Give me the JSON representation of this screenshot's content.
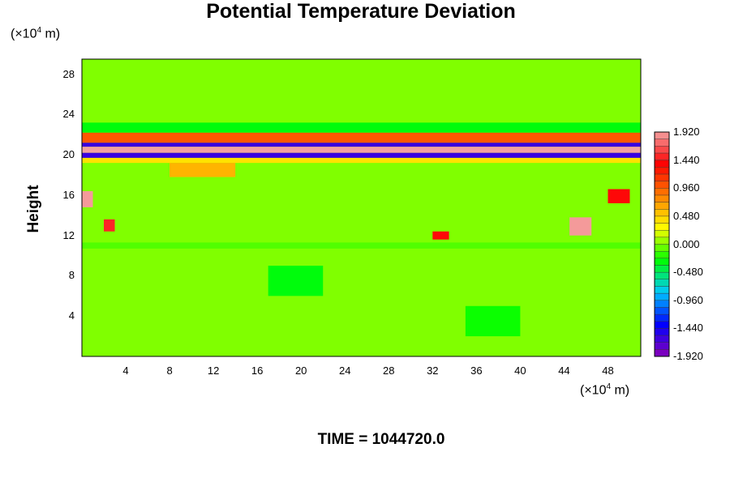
{
  "chart_data": {
    "type": "heatmap",
    "title": "Potential Temperature Deviation",
    "ylabel": "Height",
    "xunit": {
      "prefix": "(×10",
      "exp": "4",
      "suffix": " m)"
    },
    "yunit": {
      "prefix": "(×10",
      "exp": "4",
      "suffix": " m)"
    },
    "x_ticks": [
      "4",
      "8",
      "12",
      "16",
      "20",
      "24",
      "28",
      "32",
      "36",
      "40",
      "44",
      "48"
    ],
    "x_tick_values": [
      4,
      8,
      12,
      16,
      20,
      24,
      28,
      32,
      36,
      40,
      44,
      48
    ],
    "y_ticks": [
      "4",
      "8",
      "12",
      "16",
      "20",
      "24",
      "28"
    ],
    "y_tick_values": [
      4,
      8,
      12,
      16,
      20,
      24,
      28
    ],
    "xlim": [
      0,
      51
    ],
    "ylim": [
      0,
      29.5
    ],
    "background_value": 0.0,
    "features": [
      {
        "x0": 0,
        "x1": 51,
        "y0": 22.2,
        "y1": 23.2,
        "value": -0.3
      },
      {
        "x0": 0,
        "x1": 51,
        "y0": 21.2,
        "y1": 22.2,
        "value": 1.0
      },
      {
        "x0": 0,
        "x1": 51,
        "y0": 20.8,
        "y1": 21.2,
        "value": -1.6
      },
      {
        "x0": 0,
        "x1": 51,
        "y0": 20.2,
        "y1": 20.8,
        "value": 1.92
      },
      {
        "x0": 0,
        "x1": 51,
        "y0": 19.7,
        "y1": 20.2,
        "value": -1.6
      },
      {
        "x0": 0,
        "x1": 51,
        "y0": 19.2,
        "y1": 19.7,
        "value": 0.4
      },
      {
        "x0": 8,
        "x1": 14,
        "y0": 17.8,
        "y1": 19.2,
        "value": 0.6
      },
      {
        "x0": 0,
        "x1": 1,
        "y0": 14.8,
        "y1": 16.4,
        "value": 1.9
      },
      {
        "x0": 2,
        "x1": 3,
        "y0": 12.4,
        "y1": 13.6,
        "value": 1.5
      },
      {
        "x0": 32,
        "x1": 33.5,
        "y0": 11.6,
        "y1": 12.4,
        "value": 1.4
      },
      {
        "x0": 44.5,
        "x1": 46.5,
        "y0": 12.0,
        "y1": 13.8,
        "value": 1.9
      },
      {
        "x0": 48,
        "x1": 50,
        "y0": 15.2,
        "y1": 16.6,
        "value": 1.4
      },
      {
        "x0": 0,
        "x1": 51,
        "y0": 10.7,
        "y1": 11.3,
        "value": -0.1
      },
      {
        "x0": 17,
        "x1": 22,
        "y0": 6.0,
        "y1": 9.0,
        "value": -0.3
      },
      {
        "x0": 35,
        "x1": 40,
        "y0": 2.0,
        "y1": 5.0,
        "value": -0.25
      }
    ],
    "colorbar": {
      "labels": [
        "1.920",
        "1.440",
        "0.960",
        "0.480",
        "0.000",
        "-0.480",
        "-0.960",
        "-1.440",
        "-1.920"
      ],
      "values": [
        1.92,
        1.44,
        0.96,
        0.48,
        0.0,
        -0.48,
        -0.96,
        -1.44,
        -1.92
      ],
      "min": -1.92,
      "max": 1.92,
      "colors": [
        "#8a00b8",
        "#0000ff",
        "#00c8ff",
        "#00ff00",
        "#ffff00",
        "#ff8000",
        "#ff0000",
        "#f4a0a0"
      ]
    },
    "time_label": "TIME = 1044720.0"
  }
}
